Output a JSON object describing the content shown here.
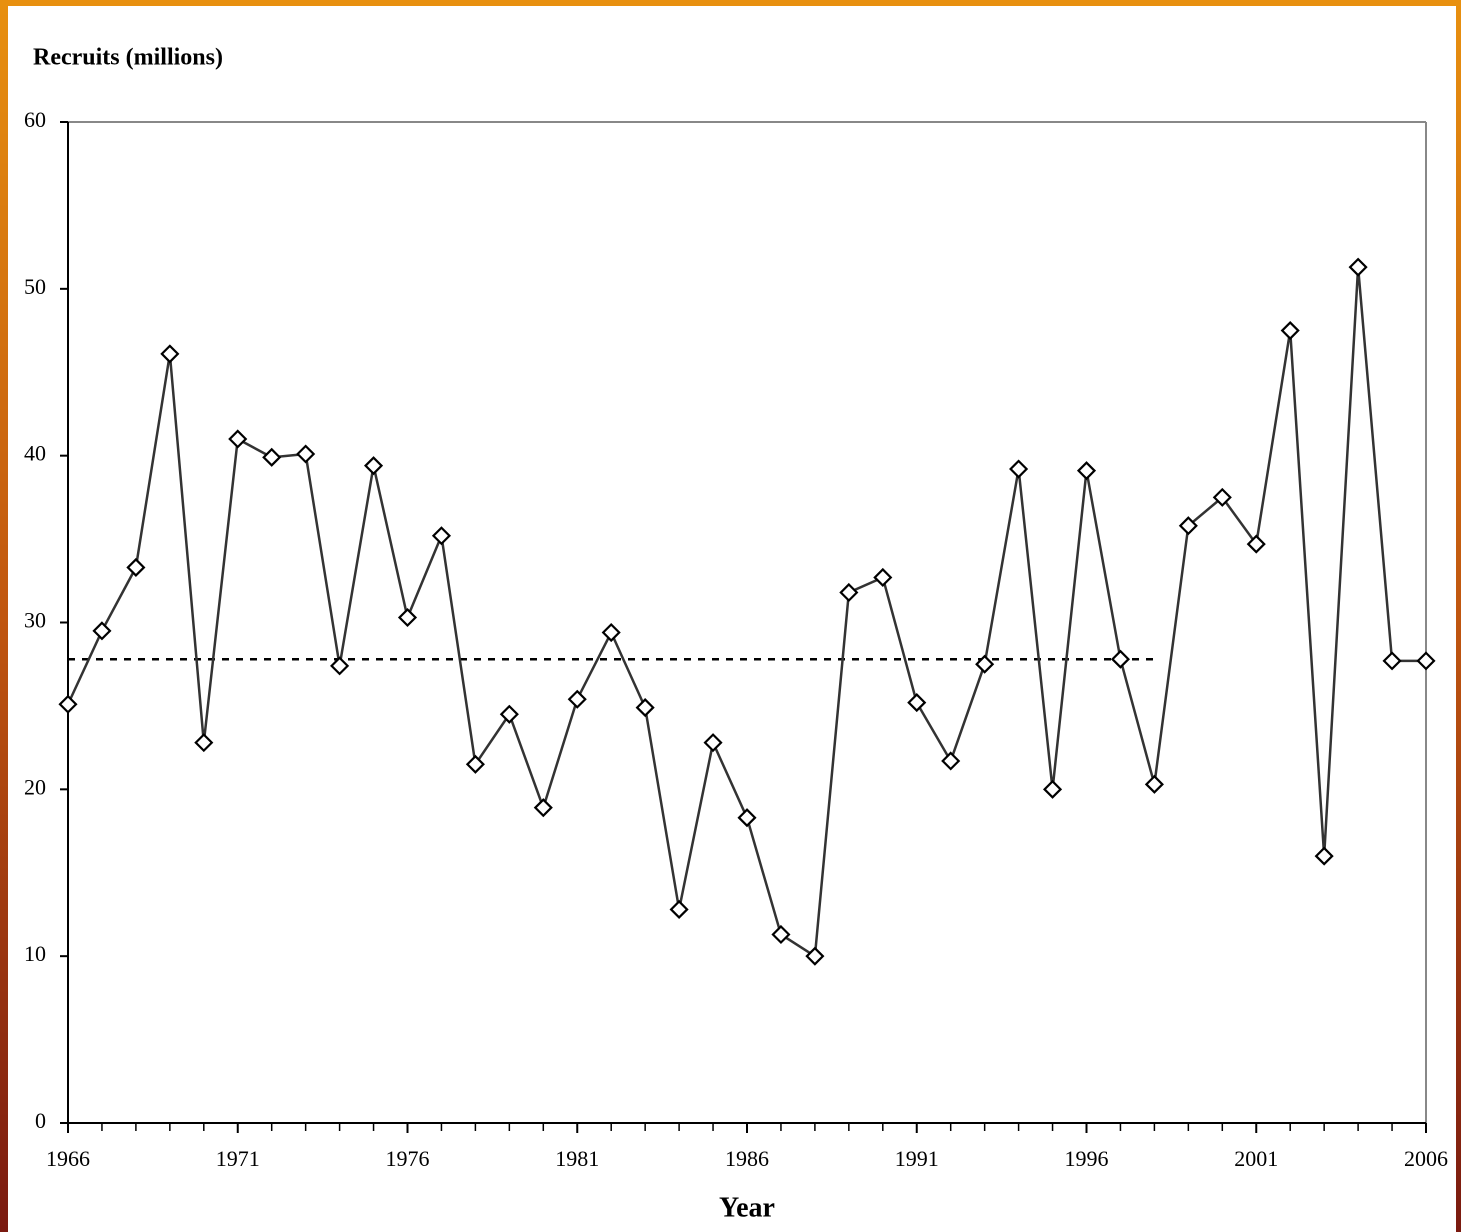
{
  "chart_data": {
    "type": "line",
    "y_label": "Recruits (millions)",
    "x_label": "Year",
    "x": [
      1966,
      1967,
      1968,
      1969,
      1970,
      1971,
      1972,
      1973,
      1974,
      1975,
      1976,
      1977,
      1978,
      1979,
      1980,
      1981,
      1982,
      1983,
      1984,
      1985,
      1986,
      1987,
      1988,
      1989,
      1990,
      1991,
      1992,
      1993,
      1994,
      1995,
      1996,
      1997,
      1998,
      1999,
      2000,
      2001,
      2002,
      2003,
      2004,
      2005,
      2006
    ],
    "series": [
      {
        "name": "Recruits",
        "color": "#333333",
        "values": [
          25.1,
          29.5,
          33.3,
          46.1,
          22.8,
          41.0,
          39.9,
          40.1,
          27.4,
          39.4,
          30.3,
          35.2,
          21.5,
          24.5,
          18.9,
          25.4,
          29.4,
          24.9,
          12.8,
          22.8,
          18.3,
          11.3,
          10.0,
          31.8,
          32.7,
          25.2,
          21.7,
          27.5,
          39.2,
          20.0,
          39.1,
          27.8,
          20.3,
          35.8,
          37.5,
          34.7,
          47.5,
          16.0,
          51.3,
          27.7,
          27.7
        ]
      }
    ],
    "reference_line": {
      "value": 27.8,
      "x": [
        1966,
        1998
      ],
      "color": "#000000"
    },
    "xlim": [
      1966,
      2006
    ],
    "xticks": [
      1966,
      1971,
      1976,
      1981,
      1986,
      1991,
      1996,
      2001,
      2006
    ],
    "ylim": [
      0,
      60
    ],
    "yticks": [
      0,
      10,
      20,
      30,
      40,
      50,
      60
    ]
  }
}
